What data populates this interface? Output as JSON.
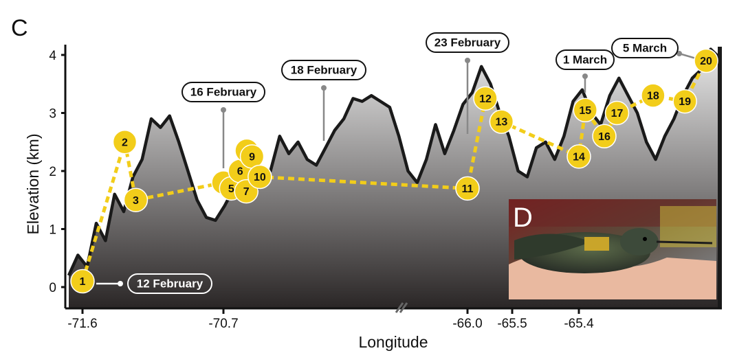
{
  "panel_label": "C",
  "inset_label": "D",
  "colors": {
    "accent": "#f2cd1a",
    "terrain_top": "#e8e8e8",
    "terrain_bottom": "#2a2626",
    "outline": "#1a1a1a",
    "callout_line": "#888888"
  },
  "chart_data": {
    "type": "line",
    "xlabel": "Longitude",
    "ylabel": "Elevation (km)",
    "ylim": [
      0,
      4.2
    ],
    "y_ticks": [
      "0",
      "1",
      "2",
      "3",
      "4"
    ],
    "x_ticks": [
      "-71.6",
      "-70.7",
      "-66.0",
      "-65.5",
      "-65.4"
    ],
    "axis_break": true,
    "elevation_profile": [
      0.2,
      0.55,
      0.35,
      1.1,
      0.8,
      1.6,
      1.3,
      1.9,
      2.2,
      2.9,
      2.75,
      2.95,
      2.5,
      2.0,
      1.5,
      1.2,
      1.15,
      1.4,
      1.7,
      1.6,
      1.55,
      1.8,
      2.0,
      2.6,
      2.3,
      2.5,
      2.2,
      2.1,
      2.4,
      2.7,
      2.9,
      3.25,
      3.2,
      3.3,
      3.2,
      3.1,
      2.6,
      2.0,
      1.8,
      2.2,
      2.8,
      2.3,
      2.7,
      3.15,
      3.35,
      3.8,
      3.5,
      3.0,
      2.6,
      2.0,
      1.9,
      2.4,
      2.5,
      2.2,
      2.6,
      3.2,
      3.4,
      3.0,
      2.8,
      3.3,
      3.6,
      3.3,
      3.0,
      2.5,
      2.2,
      2.6,
      2.9,
      3.3,
      3.6,
      3.75,
      4.1,
      3.95
    ],
    "series": [
      {
        "points": [
          {
            "label": "1",
            "x": -71.6,
            "y": 0.1
          },
          {
            "label": "2",
            "x": -71.33,
            "y": 2.5
          },
          {
            "label": "3",
            "x": -71.26,
            "y": 1.5
          },
          {
            "label": "4",
            "x": -70.7,
            "y": 1.8
          },
          {
            "label": "5",
            "x": -70.55,
            "y": 1.7
          },
          {
            "label": "6",
            "x": -70.38,
            "y": 2.0
          },
          {
            "label": "7",
            "x": -70.26,
            "y": 1.65
          },
          {
            "label": "8",
            "x": -70.25,
            "y": 2.35
          },
          {
            "label": "9",
            "x": -70.15,
            "y": 2.25
          },
          {
            "label": "10",
            "x": -70.0,
            "y": 1.9
          },
          {
            "label": "11",
            "x": -66.0,
            "y": 1.7
          },
          {
            "label": "12",
            "x": -65.8,
            "y": 3.25
          },
          {
            "label": "13",
            "x": -65.62,
            "y": 2.85
          },
          {
            "label": "14",
            "x": -65.4,
            "y": 2.25
          },
          {
            "label": "15",
            "x": -65.37,
            "y": 3.05
          },
          {
            "label": "16",
            "x": -65.28,
            "y": 2.6
          },
          {
            "label": "17",
            "x": -65.22,
            "y": 3.0
          },
          {
            "label": "18",
            "x": -65.05,
            "y": 3.3
          },
          {
            "label": "19",
            "x": -64.9,
            "y": 3.2
          },
          {
            "label": "20",
            "x": -64.8,
            "y": 3.9
          }
        ]
      }
    ],
    "annotations": [
      {
        "text": "12 February",
        "point": "1",
        "style": "dark"
      },
      {
        "text": "16 February",
        "point": "4",
        "style": "light"
      },
      {
        "text": "18 February",
        "point": "9",
        "style": "light"
      },
      {
        "text": "23 February",
        "point": "11",
        "style": "light"
      },
      {
        "text": "1 March",
        "point": "15",
        "style": "light"
      },
      {
        "text": "5 March",
        "point": "20",
        "style": "light"
      }
    ]
  }
}
